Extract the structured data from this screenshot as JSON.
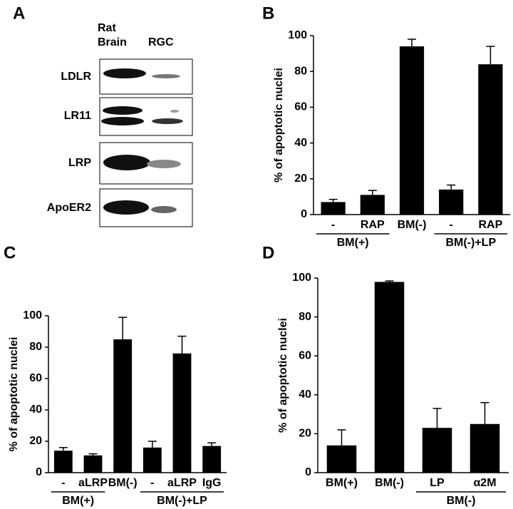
{
  "blot": {
    "panel": "A",
    "column_labels": [
      "Rat\nBrain",
      "RGC"
    ],
    "row_labels": [
      "LDLR",
      "LR11",
      "LRP",
      "ApoER2"
    ]
  },
  "chart_data": [
    {
      "type": "bar",
      "panel": "B",
      "y_label": "% of apoptotic nuclei",
      "categories": [
        "-",
        "RAP",
        "BM(-)",
        "-",
        "RAP"
      ],
      "values": [
        7,
        11,
        94,
        14,
        84
      ],
      "errors": [
        1.5,
        2.5,
        4,
        2.5,
        10
      ],
      "color": "#000000",
      "group_labels": [
        "BM(+)",
        "BM(-)+LP"
      ],
      "ylim": [
        0,
        100
      ],
      "yticks": [
        0,
        20,
        40,
        60,
        80,
        100
      ]
    },
    {
      "type": "bar",
      "panel": "C",
      "y_label": "% of apoptotic nuclei",
      "categories": [
        "-",
        "aLRP",
        "BM(-)",
        "-",
        "aLRP",
        "IgG"
      ],
      "values": [
        14,
        11,
        85,
        16,
        76,
        17
      ],
      "errors": [
        2,
        1,
        14,
        4,
        11,
        2
      ],
      "color": "#000000",
      "group_labels": [
        "BM(+)",
        "BM(-)+LP"
      ],
      "ylim": [
        0,
        100
      ],
      "yticks": [
        0,
        20,
        40,
        60,
        80,
        100
      ]
    },
    {
      "type": "bar",
      "panel": "D",
      "y_label": "% of apoptotic nuclei",
      "categories": [
        "BM(+)",
        "BM(-)",
        "LP",
        "α2M"
      ],
      "values": [
        14,
        98,
        23,
        25
      ],
      "errors": [
        8,
        0.5,
        10,
        11
      ],
      "color": "#000000",
      "group_labels": [
        "BM(-)"
      ],
      "ylim": [
        0,
        100
      ],
      "yticks": [
        0,
        20,
        40,
        60,
        80,
        100
      ]
    }
  ]
}
